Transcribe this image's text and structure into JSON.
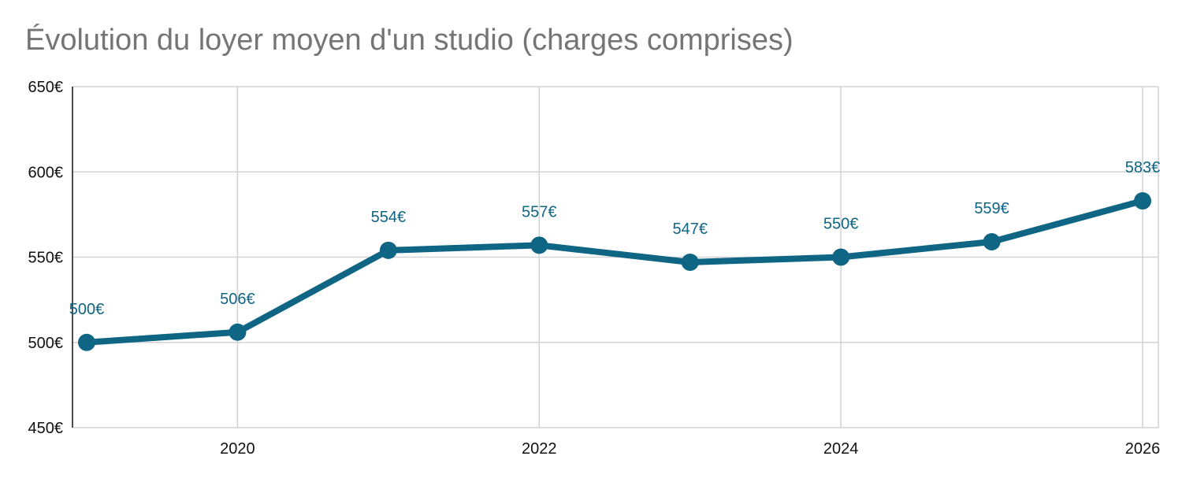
{
  "chart_data": {
    "type": "line",
    "title": "Évolution du loyer moyen d'un studio (charges comprises)",
    "xlabel": "",
    "ylabel": "",
    "x": [
      2019,
      2020,
      2021,
      2022,
      2023,
      2024,
      2025,
      2026
    ],
    "series": [
      {
        "values": [
          500,
          506,
          554,
          557,
          547,
          550,
          559,
          583
        ]
      }
    ],
    "data_labels": [
      "500€",
      "506€",
      "554€",
      "557€",
      "547€",
      "550€",
      "559€",
      "583€"
    ],
    "xlim": [
      2019,
      2026
    ],
    "ylim": [
      450,
      650
    ],
    "xticks": [
      "2020",
      "2022",
      "2024",
      "2026"
    ],
    "yticks": [
      "450€",
      "500€",
      "550€",
      "600€",
      "650€"
    ],
    "grid": true,
    "legend": "none",
    "colors": {
      "line": "#0e6584",
      "label": "#0e6584",
      "grid": "#d3d3d3",
      "axis": "#111111",
      "title": "#757575"
    }
  }
}
